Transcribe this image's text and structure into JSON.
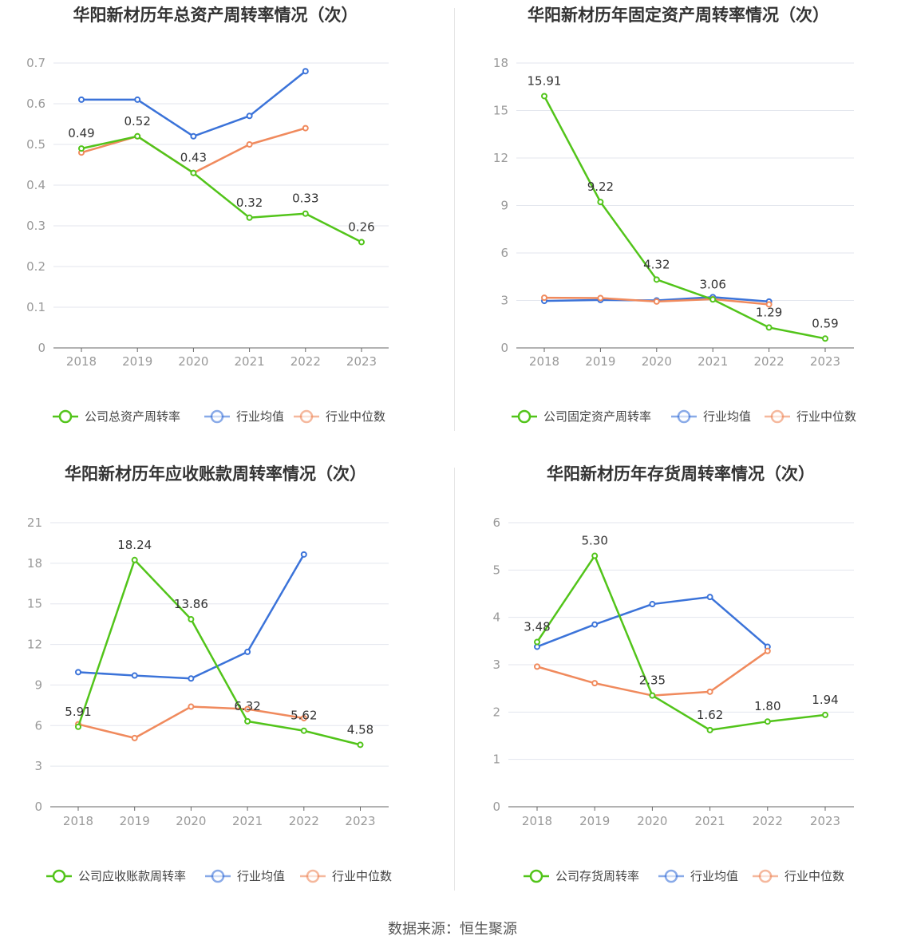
{
  "source_text": "数据来源：恒生聚源",
  "chart_data": [
    {
      "type": "line",
      "title": "华阳新材历年总资产周转率情况（次）",
      "categories": [
        "2018",
        "2019",
        "2020",
        "2021",
        "2022",
        "2023"
      ],
      "yticks": [
        "0",
        "0.1",
        "0.2",
        "0.3",
        "0.4",
        "0.5",
        "0.6",
        "0.7"
      ],
      "ylim": [
        0,
        0.7
      ],
      "series": [
        {
          "name": "公司总资产周转率",
          "color": "#52c41a",
          "values": [
            0.49,
            0.52,
            0.43,
            0.32,
            0.33,
            0.26
          ],
          "labels": [
            "0.49",
            "0.52",
            "0.43",
            "0.32",
            "0.33",
            "0.26"
          ]
        },
        {
          "name": "行业均值",
          "color": "#3b73d9",
          "values": [
            0.61,
            0.61,
            0.52,
            0.57,
            0.68,
            null
          ]
        },
        {
          "name": "行业中位数",
          "color": "#f08a5d",
          "values": [
            0.48,
            0.52,
            0.43,
            0.5,
            0.54,
            null
          ]
        }
      ]
    },
    {
      "type": "line",
      "title": "华阳新材历年固定资产周转率情况（次）",
      "categories": [
        "2018",
        "2019",
        "2020",
        "2021",
        "2022",
        "2023"
      ],
      "yticks": [
        "0",
        "3",
        "6",
        "9",
        "12",
        "15",
        "18"
      ],
      "ylim": [
        0,
        18
      ],
      "series": [
        {
          "name": "公司固定资产周转率",
          "color": "#52c41a",
          "values": [
            15.91,
            9.22,
            4.32,
            3.06,
            1.29,
            0.59
          ],
          "labels": [
            "15.91",
            "9.22",
            "4.32",
            "3.06",
            "1.29",
            "0.59"
          ]
        },
        {
          "name": "行业均值",
          "color": "#3b73d9",
          "values": [
            2.97,
            3.03,
            3.0,
            3.21,
            2.93,
            null
          ]
        },
        {
          "name": "行业中位数",
          "color": "#f08a5d",
          "values": [
            3.17,
            3.15,
            2.93,
            3.08,
            2.75,
            null
          ]
        }
      ]
    },
    {
      "type": "line",
      "title": "华阳新材历年应收账款周转率情况（次）",
      "categories": [
        "2018",
        "2019",
        "2020",
        "2021",
        "2022",
        "2023"
      ],
      "yticks": [
        "0",
        "3",
        "6",
        "9",
        "12",
        "15",
        "18",
        "21"
      ],
      "ylim": [
        0,
        21
      ],
      "series": [
        {
          "name": "公司应收账款周转率",
          "color": "#52c41a",
          "values": [
            5.91,
            18.24,
            13.86,
            6.32,
            5.62,
            4.58
          ],
          "labels": [
            "5.91",
            "18.24",
            "13.86",
            "6.32",
            "5.62",
            "4.58"
          ]
        },
        {
          "name": "行业均值",
          "color": "#3b73d9",
          "values": [
            9.95,
            9.7,
            9.48,
            11.45,
            18.65,
            null
          ]
        },
        {
          "name": "行业中位数",
          "color": "#f08a5d",
          "values": [
            6.1,
            5.08,
            7.4,
            7.22,
            6.55,
            null
          ]
        }
      ]
    },
    {
      "type": "line",
      "title": "华阳新材历年存货周转率情况（次）",
      "categories": [
        "2018",
        "2019",
        "2020",
        "2021",
        "2022",
        "2023"
      ],
      "yticks": [
        "0",
        "1",
        "2",
        "3",
        "4",
        "5",
        "6"
      ],
      "ylim": [
        0,
        6
      ],
      "series": [
        {
          "name": "公司存货周转率",
          "color": "#52c41a",
          "values": [
            3.48,
            5.3,
            2.35,
            1.62,
            1.8,
            1.94
          ],
          "labels": [
            "3.48",
            "5.30",
            "2.35",
            "1.62",
            "1.80",
            "1.94"
          ]
        },
        {
          "name": "行业均值",
          "color": "#3b73d9",
          "values": [
            3.38,
            3.85,
            4.28,
            4.43,
            3.38,
            null
          ]
        },
        {
          "name": "行业中位数",
          "color": "#f08a5d",
          "values": [
            2.96,
            2.61,
            2.35,
            2.43,
            3.29,
            null
          ]
        }
      ]
    }
  ]
}
